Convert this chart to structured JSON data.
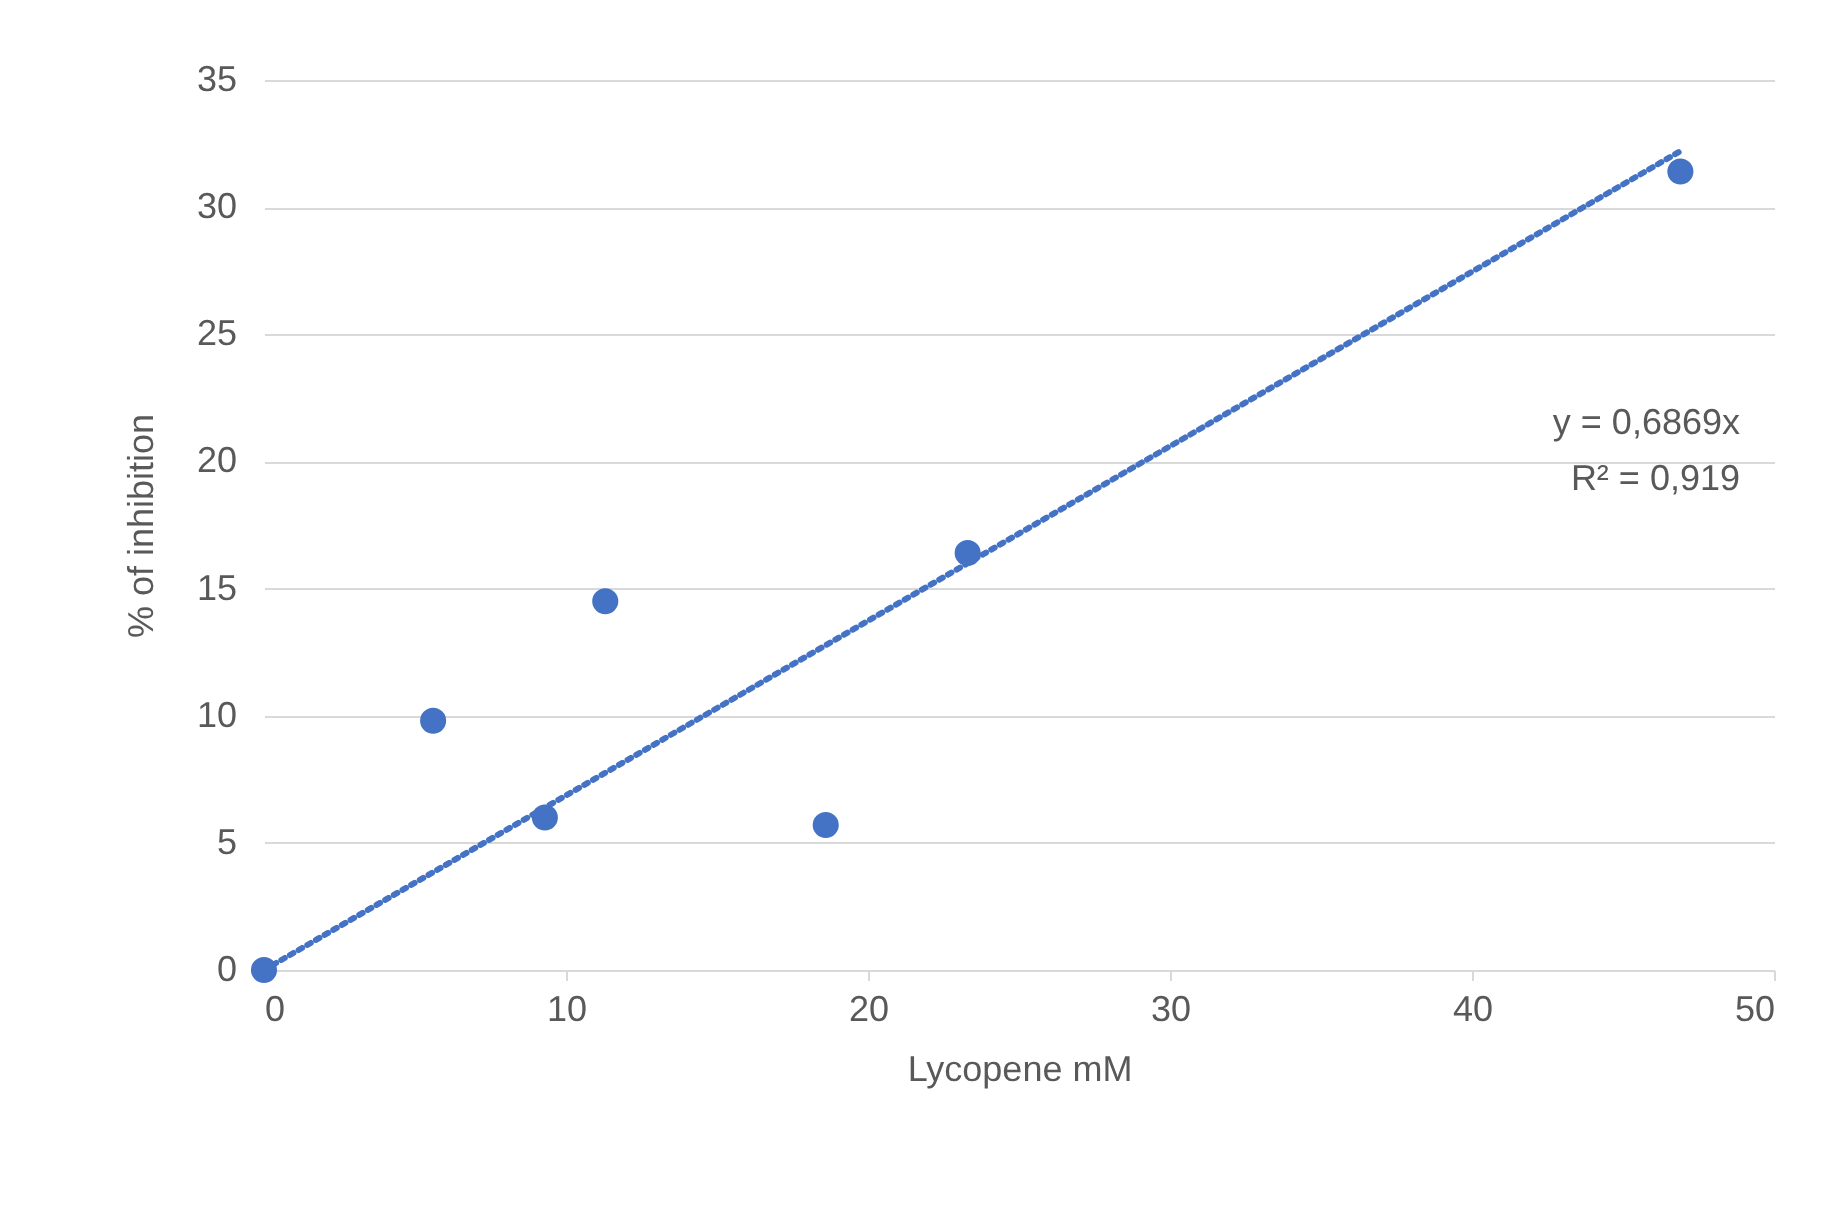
{
  "chart_data": {
    "type": "scatter",
    "xlabel": "Lycopene mM",
    "ylabel": "% of inhibition",
    "xlim": [
      0,
      50
    ],
    "xticks": [
      0,
      10,
      20,
      30,
      40,
      50
    ],
    "ylim": [
      0,
      35
    ],
    "yticks": [
      0,
      5,
      10,
      15,
      20,
      25,
      30,
      35
    ],
    "grid": "y",
    "series": [
      {
        "color": "#4472c4",
        "marker": "circle",
        "x": [
          0,
          5.6,
          9.3,
          11.3,
          18.6,
          23.3,
          46.9
        ],
        "values": [
          0,
          9.8,
          6.0,
          14.5,
          5.7,
          16.4,
          31.4
        ]
      },
      {
        "type": "line",
        "color": "#4472c4",
        "line_style": "dotted",
        "marker": "none",
        "x": [
          0,
          46.9
        ],
        "values": [
          0,
          32.2
        ]
      }
    ],
    "annotations": [
      "y = 0,6869x",
      "R² = 0,919"
    ]
  }
}
